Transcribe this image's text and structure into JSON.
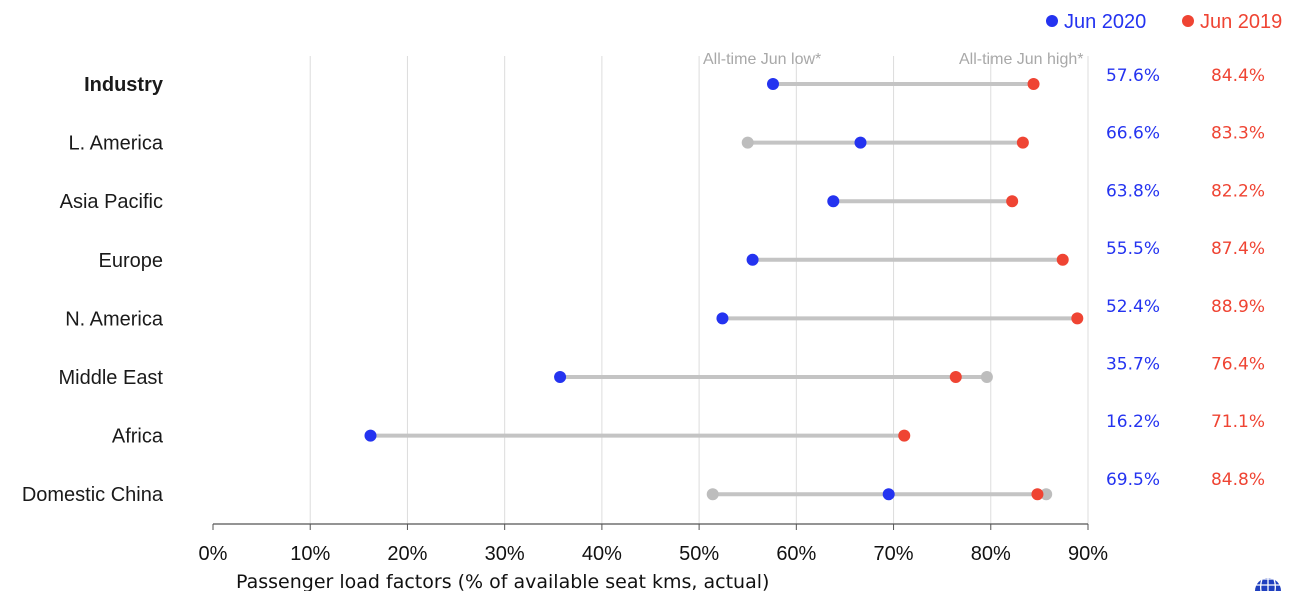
{
  "legend": [
    {
      "label": "Jun 2020",
      "color": "#2433f0"
    },
    {
      "label": "Jun 2019",
      "color": "#ef4433"
    }
  ],
  "annotations": {
    "low_label": "All-time Jun low*",
    "high_label": "All-time Jun high*"
  },
  "logo": {
    "icon": "globe-icon"
  },
  "chart_data": {
    "type": "dot-range",
    "xlabel": "Passenger load factors (% of available seat kms, actual)",
    "xlim": [
      0,
      90
    ],
    "xticks": [
      "0%",
      "10%",
      "20%",
      "30%",
      "40%",
      "50%",
      "60%",
      "70%",
      "80%",
      "90%"
    ],
    "grid": true,
    "legend_position": "top-right",
    "colors": {
      "jun2020": "#2433f0",
      "jun2019": "#ef4433",
      "alltime": "#bdbdbd",
      "range": "#c4c4c4"
    },
    "rows": [
      {
        "category": "Industry",
        "bold": true,
        "jun2020": 57.6,
        "jun2019": 84.4,
        "alltime_low": null,
        "alltime_high": null,
        "jun2020_label": "57.6%",
        "jun2019_label": "84.4%"
      },
      {
        "category": "L. America",
        "bold": false,
        "jun2020": 66.6,
        "jun2019": 83.3,
        "alltime_low": 55.0,
        "alltime_high": null,
        "jun2020_label": "66.6%",
        "jun2019_label": "83.3%"
      },
      {
        "category": "Asia Pacific",
        "bold": false,
        "jun2020": 63.8,
        "jun2019": 82.2,
        "alltime_low": null,
        "alltime_high": null,
        "jun2020_label": "63.8%",
        "jun2019_label": "82.2%"
      },
      {
        "category": "Europe",
        "bold": false,
        "jun2020": 55.5,
        "jun2019": 87.4,
        "alltime_low": null,
        "alltime_high": null,
        "jun2020_label": "55.5%",
        "jun2019_label": "87.4%"
      },
      {
        "category": "N. America",
        "bold": false,
        "jun2020": 52.4,
        "jun2019": 88.9,
        "alltime_low": null,
        "alltime_high": null,
        "jun2020_label": "52.4%",
        "jun2019_label": "88.9%"
      },
      {
        "category": "Middle East",
        "bold": false,
        "jun2020": 35.7,
        "jun2019": 76.4,
        "alltime_low": null,
        "alltime_high": 79.6,
        "jun2020_label": "35.7%",
        "jun2019_label": "76.4%"
      },
      {
        "category": "Africa",
        "bold": false,
        "jun2020": 16.2,
        "jun2019": 71.1,
        "alltime_low": null,
        "alltime_high": null,
        "jun2020_label": "16.2%",
        "jun2019_label": "71.1%"
      },
      {
        "category": "Domestic China",
        "bold": false,
        "jun2020": 69.5,
        "jun2019": 84.8,
        "alltime_low": 51.4,
        "alltime_high": 85.7,
        "jun2020_label": "69.5%",
        "jun2019_label": "84.8%"
      }
    ]
  }
}
